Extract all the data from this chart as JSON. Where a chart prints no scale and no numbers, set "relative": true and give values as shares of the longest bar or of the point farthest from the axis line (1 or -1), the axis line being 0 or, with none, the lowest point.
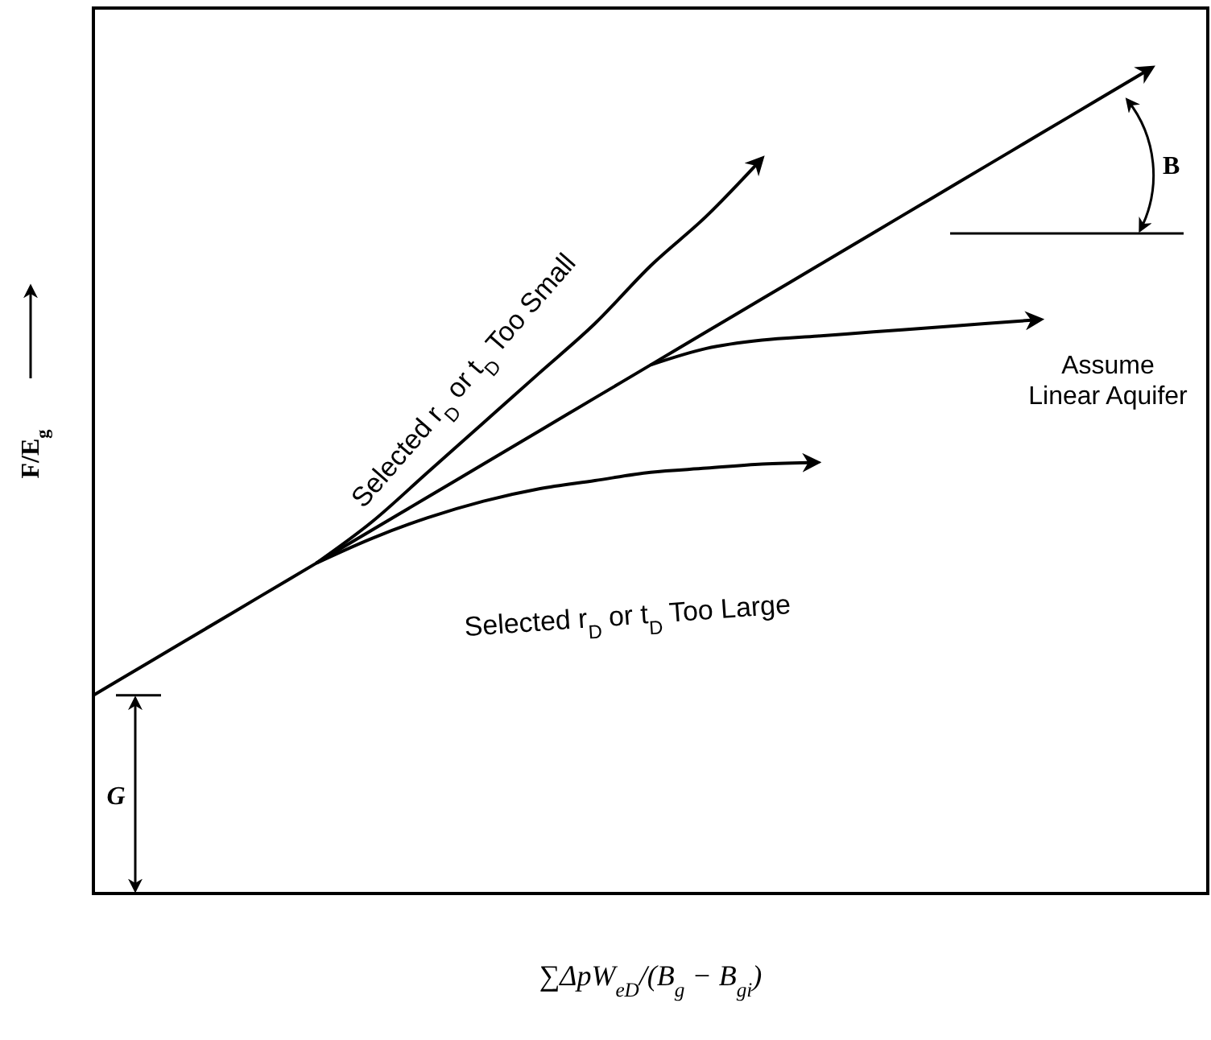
{
  "chart_data": {
    "type": "line",
    "relative": true,
    "xlabel": "∑ΔpW$_{eD}$/(B$_{g}$ − B$_{gi}$)",
    "ylabel": "F/E$_{g}$",
    "categories": [
      null,
      null,
      null,
      null,
      null,
      null,
      null,
      null,
      null,
      null,
      null,
      null,
      null,
      null,
      null,
      null,
      null,
      null,
      null,
      null,
      null
    ],
    "series": [
      {
        "color": "#000000",
        "values": [
          0.24,
          0.28,
          0.32,
          0.36,
          0.4,
          0.44,
          0.48,
          0.52,
          0.56,
          0.6,
          0.64,
          0.68,
          0.72,
          0.76,
          0.8,
          0.84,
          0.88,
          0.92,
          0.96,
          1.0,
          null
        ]
      },
      {
        "color": "#000000",
        "values": [
          null,
          null,
          null,
          null,
          0.4,
          0.45,
          0.51,
          0.57,
          0.63,
          0.69,
          0.76,
          0.82,
          0.89,
          null,
          null,
          null,
          null,
          null,
          null,
          null,
          null
        ]
      },
      {
        "color": "#000000",
        "values": [
          null,
          null,
          null,
          null,
          0.4,
          0.43,
          0.455,
          0.475,
          0.49,
          0.5,
          0.51,
          0.515,
          0.52,
          0.522,
          null,
          null,
          null,
          null,
          null,
          null,
          null
        ]
      },
      {
        "color": "#000000",
        "values": [
          null,
          null,
          null,
          null,
          null,
          null,
          null,
          null,
          null,
          null,
          0.64,
          0.66,
          0.67,
          0.675,
          0.68,
          0.685,
          0.69,
          0.695,
          null,
          null,
          null
        ]
      }
    ],
    "marker": "none",
    "line_style": "solid",
    "annotations": [
      "Selected r$_{D}$ or t$_{D}$ Too Small",
      "Selected r$_{D}$ or t$_{D}$ Too Large",
      "Assume Linear Aquifer",
      "G",
      "B"
    ]
  }
}
